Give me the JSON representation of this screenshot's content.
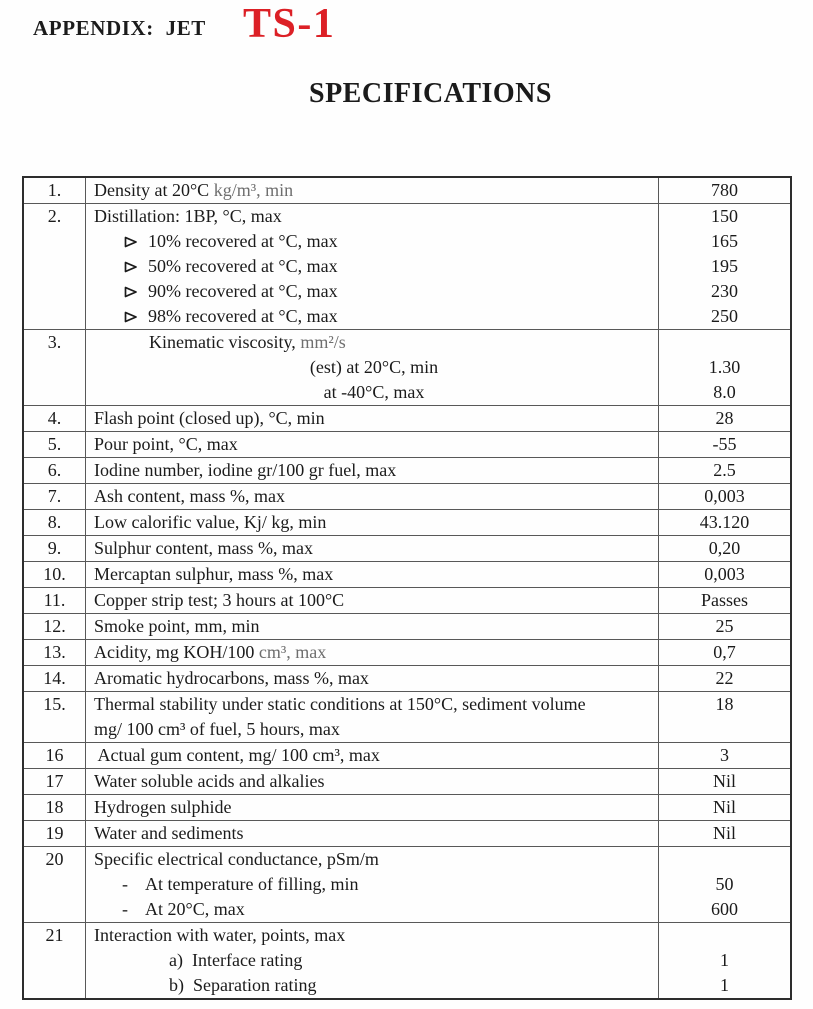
{
  "header": {
    "appendix_label": "APPENDIX:  JET",
    "grade_label": "TS-1",
    "title": "SPECIFICATIONS"
  },
  "colors": {
    "grade_red": "#dc2026",
    "text": "#1b1b1b",
    "muted_text": "#6e6e6e",
    "border": "#585858"
  },
  "table": {
    "rows": [
      {
        "num": "1.",
        "lines": [
          {
            "style": "plain",
            "segments": [
              {
                "text": "Density at 20°C "
              },
              {
                "text": "kg/m³, min",
                "muted": true
              }
            ],
            "value": "780"
          }
        ]
      },
      {
        "num": "2.",
        "lines": [
          {
            "style": "plain",
            "segments": [
              {
                "text": "Distillation: 1BP, °C, max"
              }
            ],
            "value": "150"
          },
          {
            "style": "arrow",
            "bullet": "arrow",
            "segments": [
              {
                "text": "10% recovered at °C, max"
              }
            ],
            "value": "165"
          },
          {
            "style": "arrow",
            "bullet": "arrow",
            "segments": [
              {
                "text": "50% recovered at °C, max"
              }
            ],
            "value": "195"
          },
          {
            "style": "arrow",
            "bullet": "arrow",
            "segments": [
              {
                "text": "90% recovered at °C, max"
              }
            ],
            "value": "230"
          },
          {
            "style": "arrow",
            "bullet": "arrow",
            "segments": [
              {
                "text": "98% recovered at °C, max"
              }
            ],
            "value": "250"
          }
        ]
      },
      {
        "num": "3.",
        "lines": [
          {
            "style": "indent",
            "segments": [
              {
                "text": "Kinematic viscosity, "
              },
              {
                "text": "mm²/s",
                "muted": true
              }
            ],
            "value": ""
          },
          {
            "style": "center",
            "segments": [
              {
                "text": "(est) at 20°C, min"
              }
            ],
            "value": "1.30"
          },
          {
            "style": "center",
            "segments": [
              {
                "text": "at -40°C, max"
              }
            ],
            "value": "8.0"
          }
        ]
      },
      {
        "num": "4.",
        "lines": [
          {
            "style": "plain",
            "segments": [
              {
                "text": "Flash point (closed up), °C, min"
              }
            ],
            "value": "28"
          }
        ]
      },
      {
        "num": "5.",
        "lines": [
          {
            "style": "plain",
            "segments": [
              {
                "text": "Pour point, °C, max"
              }
            ],
            "value": "-55"
          }
        ]
      },
      {
        "num": "6.",
        "lines": [
          {
            "style": "plain",
            "segments": [
              {
                "text": "Iodine number, iodine gr/100 gr fuel, max"
              }
            ],
            "value": "2.5"
          }
        ]
      },
      {
        "num": "7.",
        "lines": [
          {
            "style": "plain",
            "segments": [
              {
                "text": "Ash content, mass %, max"
              }
            ],
            "value": "0,003"
          }
        ]
      },
      {
        "num": "8.",
        "lines": [
          {
            "style": "plain",
            "segments": [
              {
                "text": "Low calorific value, Kj/ kg, min"
              }
            ],
            "value": "43.120"
          }
        ]
      },
      {
        "num": "9.",
        "lines": [
          {
            "style": "plain",
            "segments": [
              {
                "text": "Sulphur content, mass %, max"
              }
            ],
            "value": "0,20"
          }
        ]
      },
      {
        "num": "10.",
        "lines": [
          {
            "style": "plain",
            "segments": [
              {
                "text": "Mercaptan sulphur, mass %, max"
              }
            ],
            "value": "0,003"
          }
        ]
      },
      {
        "num": "11.",
        "lines": [
          {
            "style": "plain",
            "segments": [
              {
                "text": "Copper strip test; 3 hours at 100°C"
              }
            ],
            "value": "Passes"
          }
        ]
      },
      {
        "num": "12.",
        "lines": [
          {
            "style": "plain",
            "segments": [
              {
                "text": "Smoke point, mm, min"
              }
            ],
            "value": "25"
          }
        ]
      },
      {
        "num": "13.",
        "lines": [
          {
            "style": "plain",
            "segments": [
              {
                "text": "Acidity, mg KOH/100 "
              },
              {
                "text": "cm³, max",
                "muted": true
              }
            ],
            "value": "0,7"
          }
        ]
      },
      {
        "num": "14.",
        "lines": [
          {
            "style": "plain",
            "segments": [
              {
                "text": "Aromatic hydrocarbons, mass %, max"
              }
            ],
            "value": "22"
          }
        ]
      },
      {
        "num": "15.",
        "lines": [
          {
            "style": "wrap2",
            "segments": [
              {
                "text": "Thermal stability under static conditions at 150°C, sediment volume mg/ 100 cm³ of fuel, 5 hours, max"
              }
            ],
            "value": "18"
          }
        ]
      },
      {
        "num": "16",
        "lines": [
          {
            "style": "plain",
            "segments": [
              {
                "text": " Actual gum content, mg/ 100 cm³, max"
              }
            ],
            "value": "3"
          }
        ]
      },
      {
        "num": "17",
        "lines": [
          {
            "style": "plain",
            "segments": [
              {
                "text": "Water soluble acids and alkalies"
              }
            ],
            "value": "Nil"
          }
        ]
      },
      {
        "num": "18",
        "lines": [
          {
            "style": "plain",
            "segments": [
              {
                "text": "Hydrogen sulphide"
              }
            ],
            "value": "Nil"
          }
        ]
      },
      {
        "num": "19",
        "lines": [
          {
            "style": "plain",
            "segments": [
              {
                "text": "Water and sediments"
              }
            ],
            "value": "Nil"
          }
        ]
      },
      {
        "num": "20",
        "lines": [
          {
            "style": "plain",
            "segments": [
              {
                "text": "Specific electrical conductance, pSm/m"
              }
            ],
            "value": ""
          },
          {
            "style": "dash",
            "bullet": "-",
            "segments": [
              {
                "text": "At temperature of filling, min"
              }
            ],
            "value": "50"
          },
          {
            "style": "dash",
            "bullet": "-",
            "segments": [
              {
                "text": "At 20°C, max"
              }
            ],
            "value": "600"
          }
        ]
      },
      {
        "num": "21",
        "lines": [
          {
            "style": "plain",
            "segments": [
              {
                "text": "Interaction with water, points, max"
              }
            ],
            "value": ""
          },
          {
            "style": "alpha",
            "segments": [
              {
                "text": "a)  Interface rating"
              }
            ],
            "value": "1"
          },
          {
            "style": "alpha",
            "segments": [
              {
                "text": "b)  Separation rating"
              }
            ],
            "value": "1"
          }
        ]
      }
    ]
  }
}
